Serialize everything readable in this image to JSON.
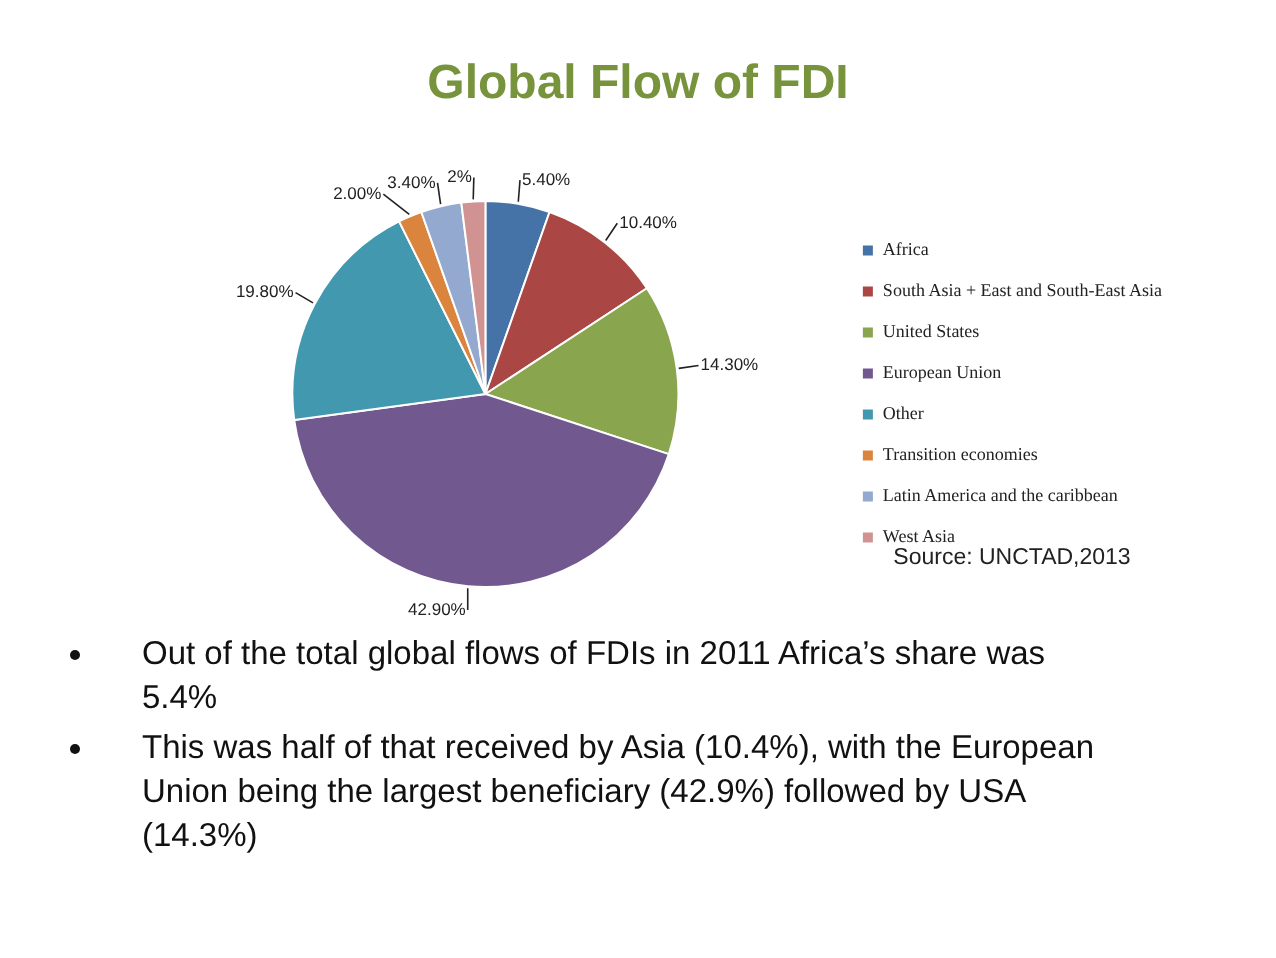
{
  "chart_data": {
    "type": "pie",
    "title": "Global Flow of FDI",
    "categories": [
      "Africa",
      "South Asia + East and South-East Asia",
      "United States",
      "European Union",
      "Other",
      "Transition economies",
      "Latin America and the caribbean",
      "West Asia"
    ],
    "values": [
      5.4,
      10.4,
      14.3,
      42.9,
      19.8,
      2,
      3.4,
      2
    ],
    "colors": [
      "#4572a7",
      "#aa4643",
      "#89a54e",
      "#71588f",
      "#4198af",
      "#db843d",
      "#93a9cf",
      "#d19392"
    ],
    "value_labels": [
      "5.40%",
      "10.40%",
      "14.30%",
      "42.90%",
      "19.80%",
      "2.00%",
      "3.40%",
      "2%"
    ],
    "legend": "right",
    "annotations": [
      "Source: UNCTAD,2013",
      "Out of the total global flows of FDIs in 2011 Africa’s share was 5.4%",
      "This was half of that received by Asia (10.4%), with the European Union being the largest beneficiary (42.9%) followed by USA (14.3%)"
    ]
  }
}
